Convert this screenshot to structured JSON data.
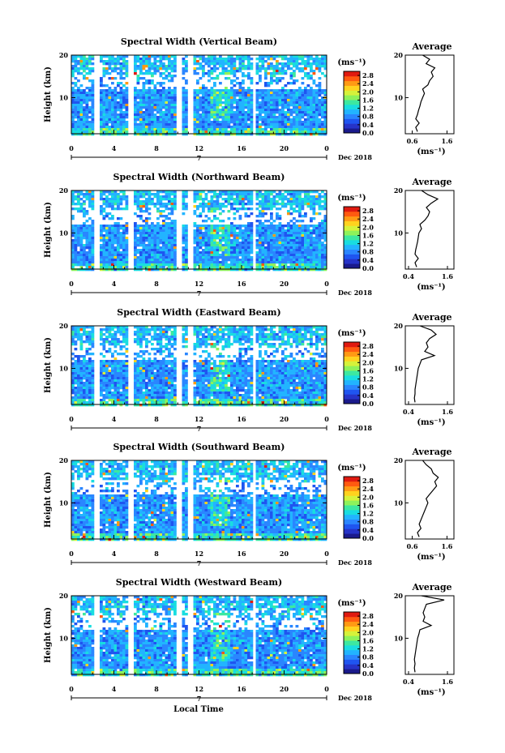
{
  "xlabel": "Local Time",
  "date_label": "Dec 2018",
  "day_label": "7",
  "ylabel": "Height (km)",
  "colorbar_unit": "(ms⁻¹)",
  "avg_title": "Average",
  "avg_xunit": "(ms⁻¹)",
  "chart_data": [
    {
      "type": "heatmap",
      "title": "Spectral Width (Vertical Beam)",
      "ylabel": "Height (km)",
      "x_ticks": [
        "0",
        "4",
        "8",
        "12",
        "16",
        "20",
        "0"
      ],
      "xlim": [
        0,
        24
      ],
      "y_ticks": [
        "20",
        "10"
      ],
      "ylim": [
        1.5,
        20
      ],
      "colorbar": {
        "unit": "(ms⁻¹)",
        "ticks": [
          "2.8",
          "2.4",
          "2.0",
          "1.6",
          "1.2",
          "0.8",
          "0.4",
          "0.0"
        ],
        "range": [
          0.0,
          3.0
        ]
      },
      "gaps_hours": [
        [
          2.0,
          2.45
        ],
        [
          5.3,
          5.65
        ],
        [
          9.8,
          10.2
        ],
        [
          10.9,
          11.3
        ],
        [
          16.8,
          17.3
        ]
      ],
      "average_profile": {
        "title": "Average",
        "x_ticks": [
          "0.6",
          "1.6"
        ],
        "xlim": [
          0.4,
          1.8
        ],
        "y_ticks": [
          "20",
          "10"
        ],
        "height_km": [
          2,
          3,
          4,
          5,
          6,
          7,
          8,
          9,
          10,
          11,
          12,
          13,
          14,
          15,
          16,
          17,
          18,
          19,
          20
        ],
        "width_ms": [
          0.75,
          0.7,
          0.8,
          0.7,
          0.75,
          0.78,
          0.82,
          0.85,
          0.9,
          0.95,
          0.9,
          1.05,
          1.1,
          1.2,
          1.15,
          1.25,
          1.0,
          1.1,
          0.9
        ]
      }
    },
    {
      "type": "heatmap",
      "title": "Spectral Width (Northward Beam)",
      "ylabel": "Height (km)",
      "x_ticks": [
        "0",
        "4",
        "8",
        "12",
        "16",
        "20",
        "0"
      ],
      "xlim": [
        0,
        24
      ],
      "y_ticks": [
        "20",
        "10"
      ],
      "ylim": [
        1.5,
        20
      ],
      "colorbar": {
        "unit": "(ms⁻¹)",
        "ticks": [
          "2.8",
          "2.4",
          "2.0",
          "1.6",
          "1.2",
          "0.8",
          "0.4",
          "0.0"
        ],
        "range": [
          0.0,
          3.0
        ]
      },
      "gaps_hours": [
        [
          2.0,
          2.45
        ],
        [
          5.3,
          5.65
        ],
        [
          9.8,
          10.2
        ],
        [
          10.9,
          11.3
        ],
        [
          16.8,
          17.3
        ]
      ],
      "average_profile": {
        "title": "Average",
        "x_ticks": [
          "0.4",
          "1.6"
        ],
        "xlim": [
          0.3,
          1.8
        ],
        "y_ticks": [
          "20",
          "10"
        ],
        "height_km": [
          2,
          3,
          4,
          5,
          6,
          7,
          8,
          9,
          10,
          11,
          12,
          13,
          14,
          15,
          16,
          17,
          18,
          19,
          20
        ],
        "width_ms": [
          0.65,
          0.6,
          0.7,
          0.6,
          0.62,
          0.65,
          0.68,
          0.7,
          0.72,
          0.8,
          0.75,
          0.9,
          1.0,
          1.05,
          0.95,
          1.1,
          1.3,
          1.0,
          0.8
        ]
      }
    },
    {
      "type": "heatmap",
      "title": "Spectral Width (Eastward Beam)",
      "ylabel": "Height (km)",
      "x_ticks": [
        "0",
        "4",
        "8",
        "12",
        "16",
        "20",
        "0"
      ],
      "xlim": [
        0,
        24
      ],
      "y_ticks": [
        "20",
        "10"
      ],
      "ylim": [
        1.5,
        20
      ],
      "colorbar": {
        "unit": "(ms⁻¹)",
        "ticks": [
          "2.8",
          "2.4",
          "2.0",
          "1.6",
          "1.2",
          "0.8",
          "0.4",
          "0.0"
        ],
        "range": [
          0.0,
          3.0
        ]
      },
      "gaps_hours": [
        [
          2.0,
          2.45
        ],
        [
          5.3,
          5.65
        ],
        [
          9.8,
          10.2
        ],
        [
          10.9,
          11.3
        ],
        [
          16.8,
          17.3
        ]
      ],
      "average_profile": {
        "title": "Average",
        "x_ticks": [
          "0.4",
          "1.6"
        ],
        "xlim": [
          0.3,
          1.8
        ],
        "y_ticks": [
          "20",
          "10"
        ],
        "height_km": [
          2,
          3,
          4,
          5,
          6,
          7,
          8,
          9,
          10,
          11,
          12,
          13,
          14,
          15,
          16,
          17,
          18,
          19,
          20
        ],
        "width_ms": [
          0.6,
          0.58,
          0.6,
          0.6,
          0.62,
          0.64,
          0.66,
          0.68,
          0.7,
          0.75,
          0.8,
          1.2,
          0.9,
          1.0,
          0.95,
          1.05,
          1.25,
          1.1,
          0.75
        ]
      }
    },
    {
      "type": "heatmap",
      "title": "Spectral Width (Southward Beam)",
      "ylabel": "Height (km)",
      "x_ticks": [
        "0",
        "4",
        "8",
        "12",
        "16",
        "20",
        "0"
      ],
      "xlim": [
        0,
        24
      ],
      "y_ticks": [
        "20",
        "10"
      ],
      "ylim": [
        1.5,
        20
      ],
      "colorbar": {
        "unit": "(ms⁻¹)",
        "ticks": [
          "2.8",
          "2.4",
          "2.0",
          "1.6",
          "1.2",
          "0.8",
          "0.4",
          "0.0"
        ],
        "range": [
          0.0,
          3.0
        ]
      },
      "gaps_hours": [
        [
          2.0,
          2.45
        ],
        [
          5.3,
          5.65
        ],
        [
          9.8,
          10.2
        ],
        [
          10.9,
          11.3
        ],
        [
          16.8,
          17.3
        ]
      ],
      "average_profile": {
        "title": "Average",
        "x_ticks": [
          "0.6",
          "1.6"
        ],
        "xlim": [
          0.4,
          1.8
        ],
        "y_ticks": [
          "20",
          "10"
        ],
        "height_km": [
          2,
          3,
          4,
          5,
          6,
          7,
          8,
          9,
          10,
          11,
          12,
          13,
          14,
          15,
          16,
          17,
          18,
          19,
          20
        ],
        "width_ms": [
          0.8,
          0.75,
          0.85,
          0.8,
          0.85,
          0.9,
          0.95,
          1.0,
          1.05,
          1.0,
          1.1,
          1.2,
          1.3,
          1.25,
          1.35,
          1.2,
          1.15,
          1.0,
          0.9
        ]
      }
    },
    {
      "type": "heatmap",
      "title": "Spectral Width (Westward Beam)",
      "ylabel": "Height (km)",
      "x_ticks": [
        "0",
        "4",
        "8",
        "12",
        "16",
        "20",
        "0"
      ],
      "xlim": [
        0,
        24
      ],
      "y_ticks": [
        "20",
        "10"
      ],
      "ylim": [
        1.5,
        20
      ],
      "colorbar": {
        "unit": "(ms⁻¹)",
        "ticks": [
          "2.8",
          "2.4",
          "2.0",
          "1.6",
          "1.2",
          "0.8",
          "0.4",
          "0.0"
        ],
        "range": [
          0.0,
          3.0
        ]
      },
      "gaps_hours": [
        [
          2.0,
          2.45
        ],
        [
          5.3,
          5.65
        ],
        [
          9.8,
          10.2
        ],
        [
          10.9,
          11.3
        ],
        [
          16.8,
          17.3
        ]
      ],
      "average_profile": {
        "title": "Average",
        "x_ticks": [
          "0.4",
          "1.6"
        ],
        "xlim": [
          0.3,
          1.8
        ],
        "y_ticks": [
          "20",
          "10"
        ],
        "height_km": [
          2,
          3,
          4,
          5,
          6,
          7,
          8,
          9,
          10,
          11,
          12,
          13,
          14,
          15,
          16,
          17,
          18,
          19,
          20
        ],
        "width_ms": [
          0.6,
          0.58,
          0.6,
          0.58,
          0.6,
          0.62,
          0.64,
          0.66,
          0.68,
          0.72,
          0.75,
          1.1,
          0.85,
          0.9,
          0.85,
          0.9,
          0.95,
          1.5,
          0.8
        ]
      }
    }
  ]
}
